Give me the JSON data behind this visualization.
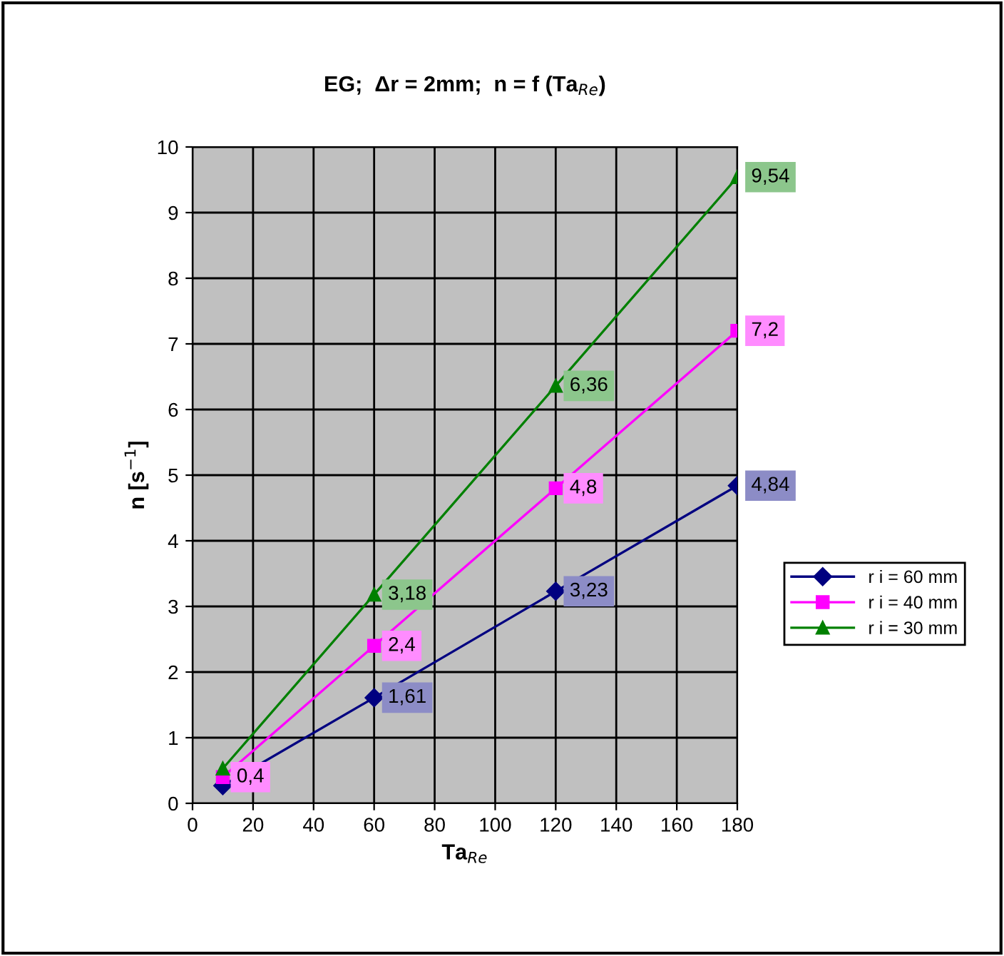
{
  "chart_data": {
    "type": "line",
    "title": "EG;  Δr = 2mm;  n = f (Ta$_{Re}$)",
    "xlabel": "Ta$_{Re}$",
    "ylabel": "n [s$^{−1}$]",
    "x": [
      10,
      60,
      120,
      180
    ],
    "series": [
      {
        "name": "r i = 60 mm",
        "color": "#000080",
        "marker": "diamond",
        "values": [
          0.27,
          1.61,
          3.23,
          4.84
        ],
        "value_labels": [
          null,
          "1,61",
          "3,23",
          "4,84"
        ]
      },
      {
        "name": "r i = 40 mm",
        "color": "#ff00ff",
        "marker": "square",
        "values": [
          0.4,
          2.4,
          4.8,
          7.2
        ],
        "value_labels": [
          "0,4",
          "2,4",
          "4,8",
          "7,2"
        ]
      },
      {
        "name": "r i = 30 mm",
        "color": "#008000",
        "marker": "triangle",
        "values": [
          0.53,
          3.18,
          6.36,
          9.54
        ],
        "value_labels": [
          null,
          "3,18",
          "6,36",
          "9,54"
        ]
      }
    ],
    "xlim": [
      0,
      180
    ],
    "xticks": [
      0,
      20,
      40,
      60,
      80,
      100,
      120,
      140,
      160,
      180
    ],
    "ylim": [
      0,
      10
    ],
    "yticks": [
      0,
      1,
      2,
      3,
      4,
      5,
      6,
      7,
      8,
      9,
      10
    ],
    "grid": true,
    "legend": "right",
    "line_style": "solid"
  }
}
